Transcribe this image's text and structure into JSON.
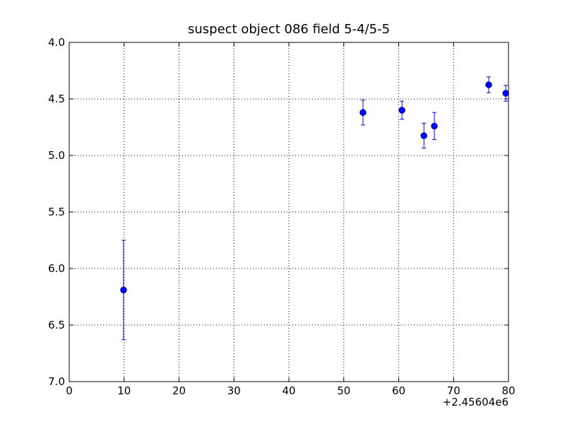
{
  "chart_data": {
    "type": "errorbar",
    "title": "suspect object 086 field 5-4/5-5",
    "x": [
      9.9,
      53.5,
      60.6,
      64.6,
      66.5,
      76.4,
      79.5
    ],
    "values": [
      6.19,
      4.62,
      4.6,
      4.825,
      4.74,
      4.375,
      4.45
    ],
    "errors": [
      0.44,
      0.11,
      0.08,
      0.11,
      0.12,
      0.07,
      0.07
    ],
    "color": "#0000ff",
    "xlim": [
      0,
      80
    ],
    "xticks": [
      0,
      10,
      20,
      30,
      40,
      50,
      60,
      70,
      80
    ],
    "x_offset_label": "+2.45604e6",
    "ylim": [
      4,
      7
    ],
    "y_inverted": true,
    "yticks": [
      {
        "value": 4,
        "label": "4.0"
      },
      {
        "value": 4.5,
        "label": "4.5"
      },
      {
        "value": 5,
        "label": "5.0"
      },
      {
        "value": 5.5,
        "label": "5.5"
      },
      {
        "value": 6,
        "label": "6.0"
      },
      {
        "value": 6.5,
        "label": "6.5"
      },
      {
        "value": 7,
        "label": "7.0"
      }
    ],
    "grid": true
  }
}
